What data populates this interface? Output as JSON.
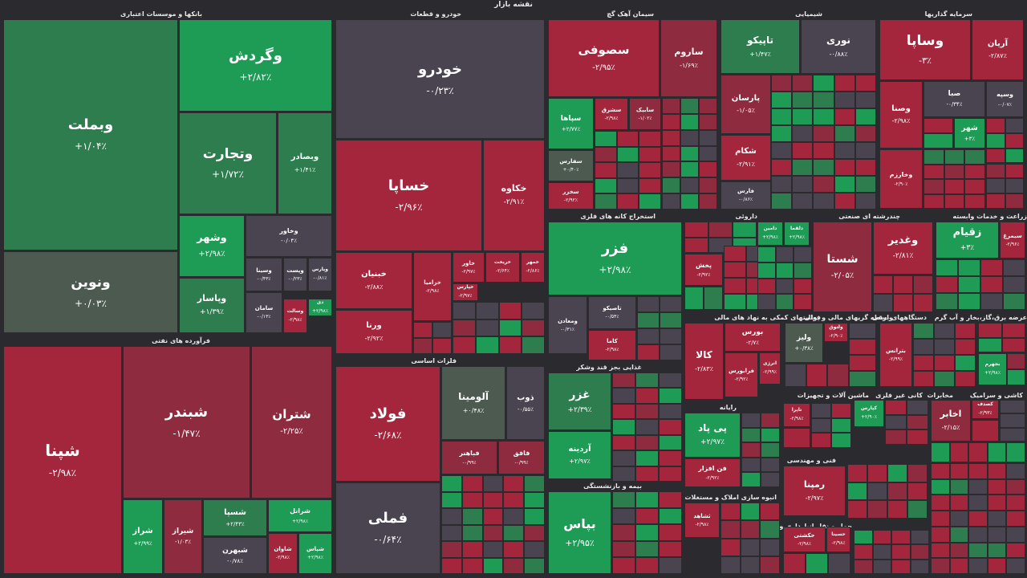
{
  "title": "نقشه بازار",
  "colors": {
    "up_strong": "#1e9b55",
    "up": "#2e7d4f",
    "flat_up": "#4c5a50",
    "flat": "#4a4450",
    "down": "#8e2b3e",
    "down_strong": "#a4263d",
    "background": "#2b2b2f"
  },
  "chart_data": {
    "type": "treemap",
    "metric": "daily change %",
    "sectors": [
      {
        "name": "بانکها و موسسات اعتباری",
        "symbols": [
          {
            "n": "وبملت",
            "v": "+۱/۰۴٪",
            "c": 1.04
          },
          {
            "n": "ونوین",
            "v": "+۰/۰۳٪",
            "c": 0.03
          },
          {
            "n": "وگردش",
            "v": "+۲/۸۲٪",
            "c": 2.82
          },
          {
            "n": "وتجارت",
            "v": "+۱/۷۲٪",
            "c": 1.72
          },
          {
            "n": "وبصادر",
            "v": "+۱/۴۱٪",
            "c": 1.41
          },
          {
            "n": "وشهر",
            "v": "+۲/۹۸٪",
            "c": 2.98
          },
          {
            "n": "وپاسار",
            "v": "+۱/۳۹٪",
            "c": 1.39
          },
          {
            "n": "وخاور",
            "v": "-۰/۰۴٪",
            "c": -0.04
          },
          {
            "n": "وسینا",
            "v": "-۰/۴۳٪",
            "c": -0.43
          },
          {
            "n": "وپست",
            "v": "-۰/۲۳٪",
            "c": -0.23
          },
          {
            "n": "وپارس",
            "v": "-۰/۸۱٪",
            "c": -0.81
          },
          {
            "n": "سامان",
            "v": "-۰/۱۳٪",
            "c": -0.13
          },
          {
            "n": "وسالت",
            "v": "-۲/۹۸٪",
            "c": -2.98
          },
          {
            "n": "دی",
            "v": "+۲/۹۸٪",
            "c": 2.98
          }
        ]
      },
      {
        "name": "خودرو و قطعات",
        "symbols": [
          {
            "n": "خودرو",
            "v": "-۰/۲۳٪",
            "c": -0.23
          },
          {
            "n": "خساپا",
            "v": "-۲/۹۶٪",
            "c": -2.96
          },
          {
            "n": "خکاوه",
            "v": "-۲/۹۱٪",
            "c": -2.91
          },
          {
            "n": "خبنیان",
            "v": "-۲/۸۸٪",
            "c": -2.88
          },
          {
            "n": "ورنا",
            "v": "-۲/۹۲٪",
            "c": -2.92
          },
          {
            "n": "خزامیا",
            "v": "-۲/۹۸٪",
            "c": -2.98
          },
          {
            "n": "خاور",
            "v": "-۲/۹۷٪",
            "c": -2.97
          },
          {
            "n": "خریخت",
            "v": "-۲/۶۴٪",
            "c": -2.64
          },
          {
            "n": "خپارس",
            "v": "-۲/۹۷٪",
            "c": -2.97
          },
          {
            "n": "خمهر",
            "v": "-۲/۸۶٪",
            "c": -2.86
          }
        ]
      },
      {
        "name": "سیمان آهک گچ",
        "symbols": [
          {
            "n": "سصوفی",
            "v": "-۲/۹۵٪",
            "c": -2.95
          },
          {
            "n": "ساروم",
            "v": "-۱/۶۹٪",
            "c": -1.69
          },
          {
            "n": "سپاها",
            "v": "+۲/۷۷٪",
            "c": 2.77
          },
          {
            "n": "سشرق",
            "v": "-۲/۹۸٪",
            "c": -2.98
          },
          {
            "n": "سابیک",
            "v": "-۱/۰۲٪",
            "c": -1.02
          },
          {
            "n": "سفارس",
            "v": "+۰/۴۰٪",
            "c": 0.4
          },
          {
            "n": "سخزر",
            "v": "-۲/۹۲٪",
            "c": -2.92
          }
        ]
      },
      {
        "name": "شیمیایی",
        "symbols": [
          {
            "n": "تاپیکو",
            "v": "+۱/۴۷٪",
            "c": 1.47
          },
          {
            "n": "نوری",
            "v": "-۰/۸۸٪",
            "c": -0.88
          },
          {
            "n": "پارسان",
            "v": "-۱/۰۵٪",
            "c": -1.05
          },
          {
            "n": "شکام",
            "v": "-۲/۹۱٪",
            "c": -2.91
          },
          {
            "n": "فارس",
            "v": "-۰/۸۶٪",
            "c": -0.86
          }
        ]
      },
      {
        "name": "سرمایه گذاریها",
        "symbols": [
          {
            "n": "وساپا",
            "v": "-۳٪",
            "c": -3.0
          },
          {
            "n": "آریان",
            "v": "-۲/۸۷٪",
            "c": -2.87
          },
          {
            "n": "وصنا",
            "v": "-۲/۹۸٪",
            "c": -2.98
          },
          {
            "n": "صبا",
            "v": "-۰/۳۴٪",
            "c": -0.34
          },
          {
            "n": "وسپه",
            "v": "-۰/۰۷٪",
            "c": -0.07
          },
          {
            "n": "شهر",
            "v": "+۳٪",
            "c": 3.0
          },
          {
            "n": "وخارزم",
            "v": "-۲/۹۰٪",
            "c": -2.9
          }
        ]
      },
      {
        "name": "استخراج کانه های فلزی",
        "symbols": [
          {
            "n": "فزر",
            "v": "+۲/۹۸٪",
            "c": 2.98
          },
          {
            "n": "تاصیکو",
            "v": "-۰/۵۴٪",
            "c": -0.54
          },
          {
            "n": "ومعادن",
            "v": "-۰/۳۱٪",
            "c": -0.31
          },
          {
            "n": "کاما",
            "v": "-۲/۹۸٪",
            "c": -2.98
          }
        ]
      },
      {
        "name": "داروئی",
        "symbols": [
          {
            "n": "دامین",
            "v": "+۲/۹۸٪",
            "c": 2.98
          },
          {
            "n": "دلقما",
            "v": "+۲/۹۸٪",
            "c": 2.98
          },
          {
            "n": "پخش",
            "v": "-۲/۹۲٪",
            "c": -2.92
          }
        ]
      },
      {
        "name": "چندرشته ای صنعتی",
        "symbols": [
          {
            "n": "شستا",
            "v": "-۲/۰۵٪",
            "c": -2.05
          },
          {
            "n": "وغدیر",
            "v": "-۲/۸۱٪",
            "c": -2.81
          }
        ]
      },
      {
        "name": "زراعت و خدمات وابسته",
        "symbols": [
          {
            "n": "زقیام",
            "v": "+۳٪",
            "c": 3.0
          },
          {
            "n": "سیمرغ",
            "v": "-۲/۹۶٪",
            "c": -2.96
          }
        ]
      },
      {
        "name": "فرآورده های نفتی",
        "symbols": [
          {
            "n": "شپنا",
            "v": "-۲/۹۸٪",
            "c": -2.98
          },
          {
            "n": "شبندر",
            "v": "-۱/۴۷٪",
            "c": -1.47
          },
          {
            "n": "شتران",
            "v": "-۲/۲۵٪",
            "c": -2.25
          },
          {
            "n": "شراز",
            "v": "+۲/۹۹٪",
            "c": 2.99
          },
          {
            "n": "شیراز",
            "v": "-۱/۰۳٪",
            "c": -1.03
          },
          {
            "n": "شسپا",
            "v": "+۲/۴۳٪",
            "c": 2.43
          },
          {
            "n": "شرانل",
            "v": "+۲/۹۸٪",
            "c": 2.98
          },
          {
            "n": "شبهرن",
            "v": "-۰/۷۸٪",
            "c": -0.78
          },
          {
            "n": "شاوان",
            "v": "-۲/۹۸٪",
            "c": -2.98
          },
          {
            "n": "شپاس",
            "v": "+۲/۹۸٪",
            "c": 2.98
          }
        ]
      },
      {
        "name": "فلزات اساسی",
        "symbols": [
          {
            "n": "فولاد",
            "v": "-۲/۶۸٪",
            "c": -2.68
          },
          {
            "n": "فملی",
            "v": "-۰/۶۴٪",
            "c": -0.64
          },
          {
            "n": "آلومینا",
            "v": "+۰/۴۸٪",
            "c": 0.48
          },
          {
            "n": "ذوب",
            "v": "-۰/۵۵٪",
            "c": -0.55
          },
          {
            "n": "فباهنر",
            "v": "-۰/۹۹٪",
            "c": -0.99
          },
          {
            "n": "فافق",
            "v": "-۰/۹۹٪",
            "c": -0.99
          }
        ]
      },
      {
        "name": "غذایی بجز قند وشکر",
        "symbols": [
          {
            "n": "غزر",
            "v": "+۲/۳۹٪",
            "c": 2.39
          },
          {
            "n": "آردینه",
            "v": "+۲/۹۷٪",
            "c": 2.97
          }
        ]
      },
      {
        "name": "بیمه و بازنشستگی",
        "symbols": [
          {
            "n": "بپاس",
            "v": "+۲/۹۵٪",
            "c": 2.95
          }
        ]
      },
      {
        "name": "رایانه",
        "symbols": [
          {
            "n": "پی پاد",
            "v": "+۲/۹۷٪",
            "c": 2.97
          },
          {
            "n": "فن افزار",
            "v": "-۲/۹۲٪",
            "c": -2.92
          }
        ]
      },
      {
        "name": "فعالیتهای کمکی به نهاد های مالی",
        "symbols": [
          {
            "n": "کالا",
            "v": "-۲/۸۳٪",
            "c": -2.83
          },
          {
            "n": "بورس",
            "v": "-۲/۷٪",
            "c": -2.7
          },
          {
            "n": "فرابورس",
            "v": "-۲/۹۲٪",
            "c": -2.92
          },
          {
            "n": "انرژی",
            "v": "-۲/۹۹٪",
            "c": -2.99
          }
        ]
      },
      {
        "name": "واسطه گریهای مالی و پولی",
        "symbols": [
          {
            "n": "ولیز",
            "v": "+۰/۳۸٪",
            "c": 0.38
          },
          {
            "n": "ولتوق",
            "v": "-۲/۹۰٪",
            "c": -2.9
          }
        ]
      },
      {
        "name": "دستگاههای برقی",
        "symbols": [
          {
            "n": "بترانس",
            "v": "-۲/۹۹٪",
            "c": -2.99
          }
        ]
      },
      {
        "name": "عرضه برق،گاز،بخار و آب گرم",
        "symbols": [
          {
            "n": "بجهرم",
            "v": "+۲/۹۸٪",
            "c": 2.98
          }
        ]
      },
      {
        "name": "ماشین آلات و تجهیزات",
        "symbols": [
          {
            "n": "تاپرا",
            "v": "-۲/۹۸٪",
            "c": -2.98
          }
        ]
      },
      {
        "name": "کانی غیر فلزی",
        "symbols": [
          {
            "n": "کپارس",
            "v": "+۲/۹۰٪",
            "c": 2.9
          }
        ]
      },
      {
        "name": "مخابرات",
        "symbols": [
          {
            "n": "اخابر",
            "v": "-۲/۱۵٪",
            "c": -2.15
          }
        ]
      },
      {
        "name": "کاشی و سرامیک",
        "symbols": [
          {
            "n": "کصدف",
            "v": "-۲/۹۳٪",
            "c": -2.93
          }
        ]
      },
      {
        "name": "حمل و نقل انبارداری و ارتباطات",
        "symbols": [
          {
            "n": "حکشتی",
            "v": "-۲/۹۸٪",
            "c": -2.98
          },
          {
            "n": "حسینا",
            "v": "-۲/۹۸٪",
            "c": -2.98
          }
        ]
      },
      {
        "name": "فنی و مهندسی",
        "symbols": [
          {
            "n": "رمپنا",
            "v": "-۲/۹۷٪",
            "c": -2.97
          }
        ]
      },
      {
        "name": "انبوه سازی املاک و مستغلات",
        "symbols": [
          {
            "n": "ثشاهد",
            "v": "-۲/۹۸٪",
            "c": -2.98
          }
        ]
      }
    ]
  }
}
